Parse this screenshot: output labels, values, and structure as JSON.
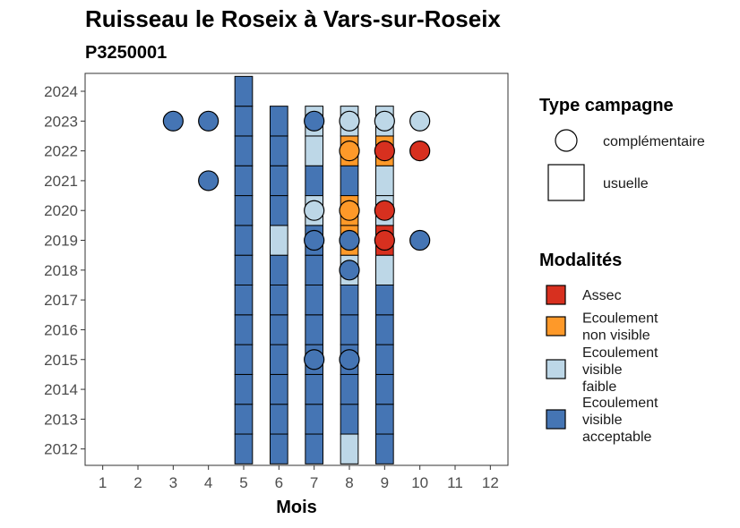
{
  "chart_data": {
    "type": "heatmap",
    "title": "Ruisseau le Roseix à Vars-sur-Roseix",
    "subtitle": "P3250001",
    "xlabel": "Mois",
    "ylabel": "",
    "x_ticks": [
      1,
      2,
      3,
      4,
      5,
      6,
      7,
      8,
      9,
      10,
      11,
      12
    ],
    "y_ticks": [
      2012,
      2013,
      2014,
      2015,
      2016,
      2017,
      2018,
      2019,
      2020,
      2021,
      2022,
      2023,
      2024
    ],
    "xlim": [
      0.5,
      12.5
    ],
    "ylim": [
      2011.45,
      2024.6
    ],
    "colors": {
      "Assec": "#d7301f",
      "Ecoulement non visible": "#fe9929",
      "Ecoulement visible faible": "#bdd7e7",
      "Ecoulement visible acceptable": "#4575b4"
    },
    "squares": [
      {
        "month": 5,
        "year": 2012,
        "mod": "Ecoulement visible acceptable"
      },
      {
        "month": 6,
        "year": 2012,
        "mod": "Ecoulement visible acceptable"
      },
      {
        "month": 7,
        "year": 2012,
        "mod": "Ecoulement visible acceptable"
      },
      {
        "month": 8,
        "year": 2012,
        "mod": "Ecoulement visible faible"
      },
      {
        "month": 9,
        "year": 2012,
        "mod": "Ecoulement visible acceptable"
      },
      {
        "month": 5,
        "year": 2013,
        "mod": "Ecoulement visible acceptable"
      },
      {
        "month": 6,
        "year": 2013,
        "mod": "Ecoulement visible acceptable"
      },
      {
        "month": 7,
        "year": 2013,
        "mod": "Ecoulement visible acceptable"
      },
      {
        "month": 8,
        "year": 2013,
        "mod": "Ecoulement visible acceptable"
      },
      {
        "month": 9,
        "year": 2013,
        "mod": "Ecoulement visible acceptable"
      },
      {
        "month": 5,
        "year": 2014,
        "mod": "Ecoulement visible acceptable"
      },
      {
        "month": 6,
        "year": 2014,
        "mod": "Ecoulement visible acceptable"
      },
      {
        "month": 7,
        "year": 2014,
        "mod": "Ecoulement visible acceptable"
      },
      {
        "month": 8,
        "year": 2014,
        "mod": "Ecoulement visible acceptable"
      },
      {
        "month": 9,
        "year": 2014,
        "mod": "Ecoulement visible acceptable"
      },
      {
        "month": 5,
        "year": 2015,
        "mod": "Ecoulement visible acceptable"
      },
      {
        "month": 6,
        "year": 2015,
        "mod": "Ecoulement visible acceptable"
      },
      {
        "month": 7,
        "year": 2015,
        "mod": "Ecoulement visible acceptable"
      },
      {
        "month": 8,
        "year": 2015,
        "mod": "Ecoulement visible acceptable"
      },
      {
        "month": 9,
        "year": 2015,
        "mod": "Ecoulement visible acceptable"
      },
      {
        "month": 5,
        "year": 2016,
        "mod": "Ecoulement visible acceptable"
      },
      {
        "month": 6,
        "year": 2016,
        "mod": "Ecoulement visible acceptable"
      },
      {
        "month": 7,
        "year": 2016,
        "mod": "Ecoulement visible acceptable"
      },
      {
        "month": 8,
        "year": 2016,
        "mod": "Ecoulement visible acceptable"
      },
      {
        "month": 9,
        "year": 2016,
        "mod": "Ecoulement visible acceptable"
      },
      {
        "month": 5,
        "year": 2017,
        "mod": "Ecoulement visible acceptable"
      },
      {
        "month": 6,
        "year": 2017,
        "mod": "Ecoulement visible acceptable"
      },
      {
        "month": 7,
        "year": 2017,
        "mod": "Ecoulement visible acceptable"
      },
      {
        "month": 8,
        "year": 2017,
        "mod": "Ecoulement visible acceptable"
      },
      {
        "month": 9,
        "year": 2017,
        "mod": "Ecoulement visible acceptable"
      },
      {
        "month": 5,
        "year": 2018,
        "mod": "Ecoulement visible acceptable"
      },
      {
        "month": 6,
        "year": 2018,
        "mod": "Ecoulement visible acceptable"
      },
      {
        "month": 7,
        "year": 2018,
        "mod": "Ecoulement visible acceptable"
      },
      {
        "month": 8,
        "year": 2018,
        "mod": "Ecoulement visible faible"
      },
      {
        "month": 9,
        "year": 2018,
        "mod": "Ecoulement visible faible"
      },
      {
        "month": 5,
        "year": 2019,
        "mod": "Ecoulement visible acceptable"
      },
      {
        "month": 6,
        "year": 2019,
        "mod": "Ecoulement visible faible"
      },
      {
        "month": 7,
        "year": 2019,
        "mod": "Ecoulement visible acceptable"
      },
      {
        "month": 8,
        "year": 2019,
        "mod": "Ecoulement non visible"
      },
      {
        "month": 9,
        "year": 2019,
        "mod": "Assec"
      },
      {
        "month": 5,
        "year": 2020,
        "mod": "Ecoulement visible acceptable"
      },
      {
        "month": 6,
        "year": 2020,
        "mod": "Ecoulement visible acceptable"
      },
      {
        "month": 7,
        "year": 2020,
        "mod": "Ecoulement visible faible"
      },
      {
        "month": 8,
        "year": 2020,
        "mod": "Ecoulement non visible"
      },
      {
        "month": 9,
        "year": 2020,
        "mod": "Ecoulement visible faible"
      },
      {
        "month": 5,
        "year": 2021,
        "mod": "Ecoulement visible acceptable"
      },
      {
        "month": 6,
        "year": 2021,
        "mod": "Ecoulement visible acceptable"
      },
      {
        "month": 7,
        "year": 2021,
        "mod": "Ecoulement visible acceptable"
      },
      {
        "month": 8,
        "year": 2021,
        "mod": "Ecoulement visible acceptable"
      },
      {
        "month": 9,
        "year": 2021,
        "mod": "Ecoulement visible faible"
      },
      {
        "month": 5,
        "year": 2022,
        "mod": "Ecoulement visible acceptable"
      },
      {
        "month": 6,
        "year": 2022,
        "mod": "Ecoulement visible acceptable"
      },
      {
        "month": 7,
        "year": 2022,
        "mod": "Ecoulement visible faible"
      },
      {
        "month": 8,
        "year": 2022,
        "mod": "Ecoulement non visible"
      },
      {
        "month": 9,
        "year": 2022,
        "mod": "Ecoulement non visible"
      },
      {
        "month": 5,
        "year": 2023,
        "mod": "Ecoulement visible acceptable"
      },
      {
        "month": 6,
        "year": 2023,
        "mod": "Ecoulement visible acceptable"
      },
      {
        "month": 7,
        "year": 2023,
        "mod": "Ecoulement visible faible"
      },
      {
        "month": 8,
        "year": 2023,
        "mod": "Ecoulement visible faible"
      },
      {
        "month": 9,
        "year": 2023,
        "mod": "Ecoulement visible faible"
      },
      {
        "month": 5,
        "year": 2024,
        "mod": "Ecoulement visible acceptable"
      }
    ],
    "circles": [
      {
        "month": 7,
        "year": 2015,
        "mod": "Ecoulement visible acceptable"
      },
      {
        "month": 8,
        "year": 2015,
        "mod": "Ecoulement visible acceptable"
      },
      {
        "month": 8,
        "year": 2018,
        "mod": "Ecoulement visible acceptable"
      },
      {
        "month": 7,
        "year": 2019,
        "mod": "Ecoulement visible acceptable"
      },
      {
        "month": 8,
        "year": 2019,
        "mod": "Ecoulement visible acceptable"
      },
      {
        "month": 9,
        "year": 2019,
        "mod": "Assec"
      },
      {
        "month": 10,
        "year": 2019,
        "mod": "Ecoulement visible acceptable"
      },
      {
        "month": 7,
        "year": 2020,
        "mod": "Ecoulement visible faible"
      },
      {
        "month": 8,
        "year": 2020,
        "mod": "Ecoulement non visible"
      },
      {
        "month": 9,
        "year": 2020,
        "mod": "Assec"
      },
      {
        "month": 4,
        "year": 2021,
        "mod": "Ecoulement visible acceptable"
      },
      {
        "month": 8,
        "year": 2022,
        "mod": "Ecoulement non visible"
      },
      {
        "month": 9,
        "year": 2022,
        "mod": "Assec"
      },
      {
        "month": 10,
        "year": 2022,
        "mod": "Assec"
      },
      {
        "month": 3,
        "year": 2023,
        "mod": "Ecoulement visible acceptable"
      },
      {
        "month": 4,
        "year": 2023,
        "mod": "Ecoulement visible acceptable"
      },
      {
        "month": 7,
        "year": 2023,
        "mod": "Ecoulement visible acceptable"
      },
      {
        "month": 8,
        "year": 2023,
        "mod": "Ecoulement visible faible"
      },
      {
        "month": 9,
        "year": 2023,
        "mod": "Ecoulement visible faible"
      },
      {
        "month": 10,
        "year": 2023,
        "mod": "Ecoulement visible faible"
      }
    ],
    "legend_type": {
      "title": "Type campagne",
      "items": [
        {
          "shape": "circle",
          "label": "complémentaire"
        },
        {
          "shape": "square",
          "label": "usuelle"
        }
      ]
    },
    "legend_mod": {
      "title": "Modalités",
      "items": [
        {
          "key": "Assec",
          "lines": [
            "Assec"
          ]
        },
        {
          "key": "Ecoulement non visible",
          "lines": [
            "Ecoulement",
            "non visible"
          ]
        },
        {
          "key": "Ecoulement visible faible",
          "lines": [
            "Ecoulement",
            "visible",
            "faible"
          ]
        },
        {
          "key": "Ecoulement visible acceptable",
          "lines": [
            "Ecoulement",
            "visible",
            "acceptable"
          ]
        }
      ]
    },
    "legend_position": "right",
    "grid": false
  }
}
